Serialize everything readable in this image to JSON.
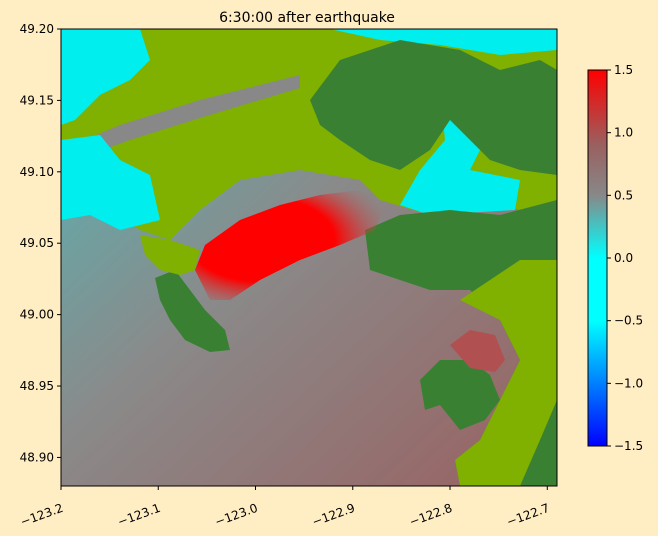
{
  "chart_data": {
    "type": "heatmap",
    "title": "6:30:00 after earthquake",
    "xlabel": "",
    "ylabel": "",
    "xlim": [
      -123.2,
      -122.69
    ],
    "ylim": [
      48.88,
      49.2
    ],
    "x_ticks": [
      "−123.2",
      "−123.1",
      "−123.0",
      "−122.9",
      "−122.8",
      "−122.7"
    ],
    "x_tick_values": [
      -123.2,
      -123.1,
      -123.0,
      -122.9,
      -122.8,
      -122.7
    ],
    "y_ticks": [
      "48.90",
      "48.95",
      "49.00",
      "49.05",
      "49.10",
      "49.15",
      "49.20"
    ],
    "y_tick_values": [
      48.9,
      48.95,
      49.0,
      49.05,
      49.1,
      49.15,
      49.2
    ],
    "colorbar": {
      "range": [
        -1.5,
        1.5
      ],
      "ticks": [
        "−1.5",
        "−1.0",
        "−0.5",
        "0.0",
        "0.5",
        "1.0",
        "1.5"
      ],
      "tick_values": [
        -1.5,
        -1.0,
        -0.5,
        0.0,
        0.5,
        1.0,
        1.5
      ],
      "colors": [
        "#0000ff",
        "#00ffff",
        "#888888",
        "#ff0000"
      ]
    },
    "land_colors": {
      "lowland": "#80b000",
      "upland": "#3a8032"
    }
  }
}
